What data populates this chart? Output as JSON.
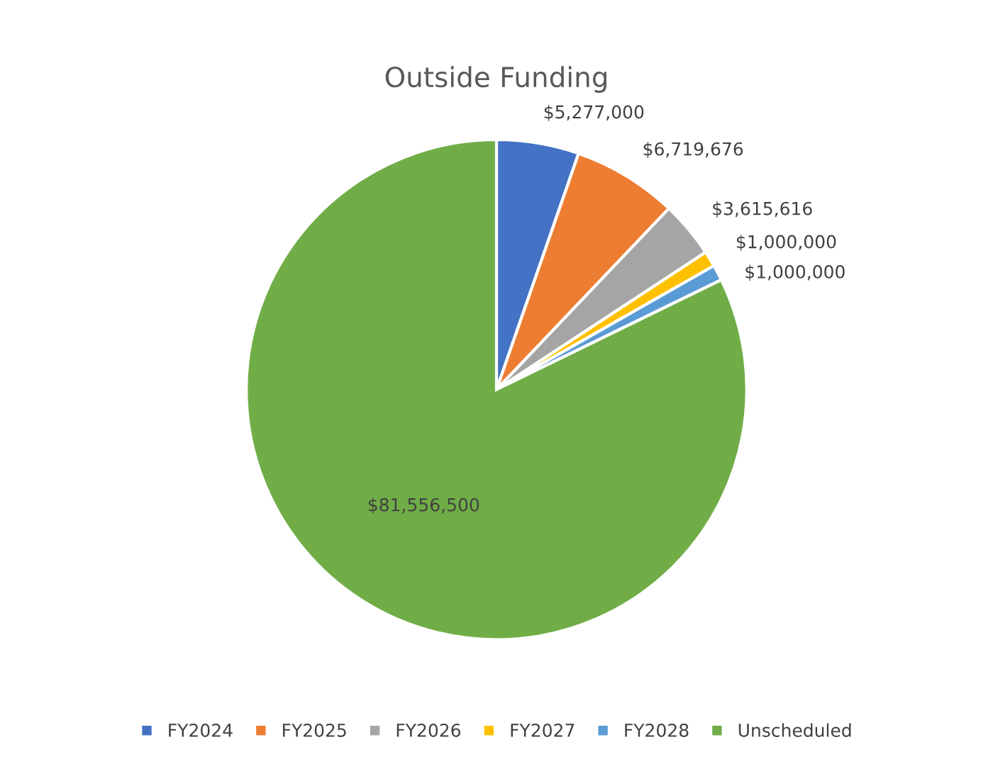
{
  "chart_data": {
    "type": "pie",
    "title": "Outside Funding",
    "categories": [
      "FY2024",
      "FY2025",
      "FY2026",
      "FY2027",
      "FY2028",
      "Unscheduled"
    ],
    "values": [
      5277000,
      6719676,
      3615616,
      1000000,
      1000000,
      81556500
    ],
    "value_labels": [
      "$5,277,000",
      "$6,719,676",
      "$3,615,616",
      "$1,000,000",
      "$1,000,000",
      "$81,556,500"
    ],
    "colors": [
      "#4472c4",
      "#ed7d31",
      "#a5a5a5",
      "#ffc000",
      "#5b9bd5",
      "#70ad47"
    ],
    "legend": "bottom"
  }
}
